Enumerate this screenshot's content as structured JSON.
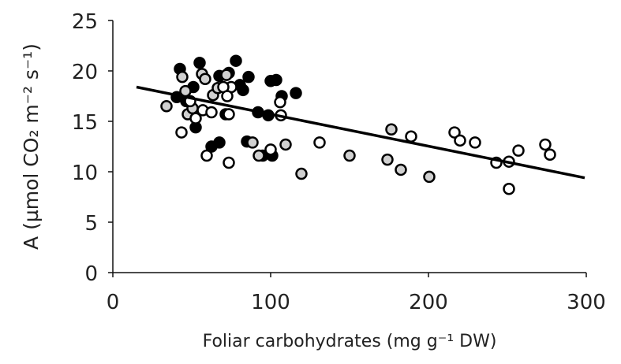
{
  "chart_data": {
    "type": "scatter",
    "title": "",
    "xlabel": "Foliar carbohydrates (mg g⁻¹ DW)",
    "ylabel": "A (µmol CO₂ m⁻² s⁻¹)",
    "xlim": [
      0,
      300
    ],
    "ylim": [
      0,
      25
    ],
    "xticks": [
      0,
      100,
      200,
      300
    ],
    "yticks": [
      0,
      5,
      10,
      15,
      20,
      25
    ],
    "grid": false,
    "colors": {
      "black": "#000000",
      "gray": "#d0d0d0",
      "white": "#ffffff"
    },
    "series": [
      {
        "fill": "#000000",
        "points": [
          [
            42.5,
            20.2
          ],
          [
            55,
            20.8
          ],
          [
            78,
            21.0
          ],
          [
            40.5,
            17.4
          ],
          [
            51,
            18.4
          ],
          [
            52.5,
            14.4
          ],
          [
            67.5,
            19.5
          ],
          [
            73.5,
            19.8
          ],
          [
            80.5,
            18.6
          ],
          [
            86,
            19.4
          ],
          [
            100,
            19.0
          ],
          [
            103.5,
            19.1
          ],
          [
            107,
            17.5
          ],
          [
            116,
            17.8
          ],
          [
            92,
            15.9
          ],
          [
            98.5,
            15.6
          ],
          [
            62.5,
            12.5
          ],
          [
            67.5,
            12.9
          ],
          [
            85,
            13.0
          ],
          [
            101,
            11.6
          ],
          [
            95,
            11.6
          ],
          [
            71.5,
            15.7
          ],
          [
            46.5,
            17.0
          ],
          [
            82.5,
            18.1
          ]
        ]
      },
      {
        "fill": "#d0d0d0",
        "points": [
          [
            34,
            16.5
          ],
          [
            44,
            19.4
          ],
          [
            46,
            18.0
          ],
          [
            56.5,
            19.7
          ],
          [
            58.5,
            19.2
          ],
          [
            63.5,
            17.6
          ],
          [
            72,
            19.6
          ],
          [
            66.5,
            18.3
          ],
          [
            47.5,
            15.7
          ],
          [
            50.5,
            16.3
          ],
          [
            92.5,
            11.6
          ],
          [
            88.5,
            12.9
          ],
          [
            109.5,
            12.7
          ],
          [
            119.5,
            9.8
          ],
          [
            150,
            11.6
          ],
          [
            176.5,
            14.2
          ],
          [
            174,
            11.2
          ],
          [
            182.5,
            10.2
          ],
          [
            200.5,
            9.5
          ]
        ]
      },
      {
        "fill": "#ffffff",
        "points": [
          [
            43.5,
            13.9
          ],
          [
            59.5,
            11.6
          ],
          [
            73.5,
            10.9
          ],
          [
            52.5,
            15.3
          ],
          [
            57,
            16.1
          ],
          [
            62.5,
            15.9
          ],
          [
            73.5,
            15.7
          ],
          [
            75,
            18.4
          ],
          [
            70,
            18.4
          ],
          [
            72.5,
            17.5
          ],
          [
            100,
            12.2
          ],
          [
            106,
            16.9
          ],
          [
            106.5,
            15.6
          ],
          [
            131,
            12.9
          ],
          [
            189,
            13.5
          ],
          [
            216.5,
            13.9
          ],
          [
            220,
            13.1
          ],
          [
            229.5,
            12.9
          ],
          [
            243,
            10.9
          ],
          [
            251,
            11.0
          ],
          [
            251,
            8.3
          ],
          [
            257,
            12.1
          ],
          [
            274,
            12.7
          ],
          [
            277,
            11.7
          ],
          [
            49,
            17.0
          ]
        ]
      }
    ],
    "trendline": {
      "x": [
        15,
        299
      ],
      "y": [
        18.4,
        9.4
      ]
    }
  }
}
